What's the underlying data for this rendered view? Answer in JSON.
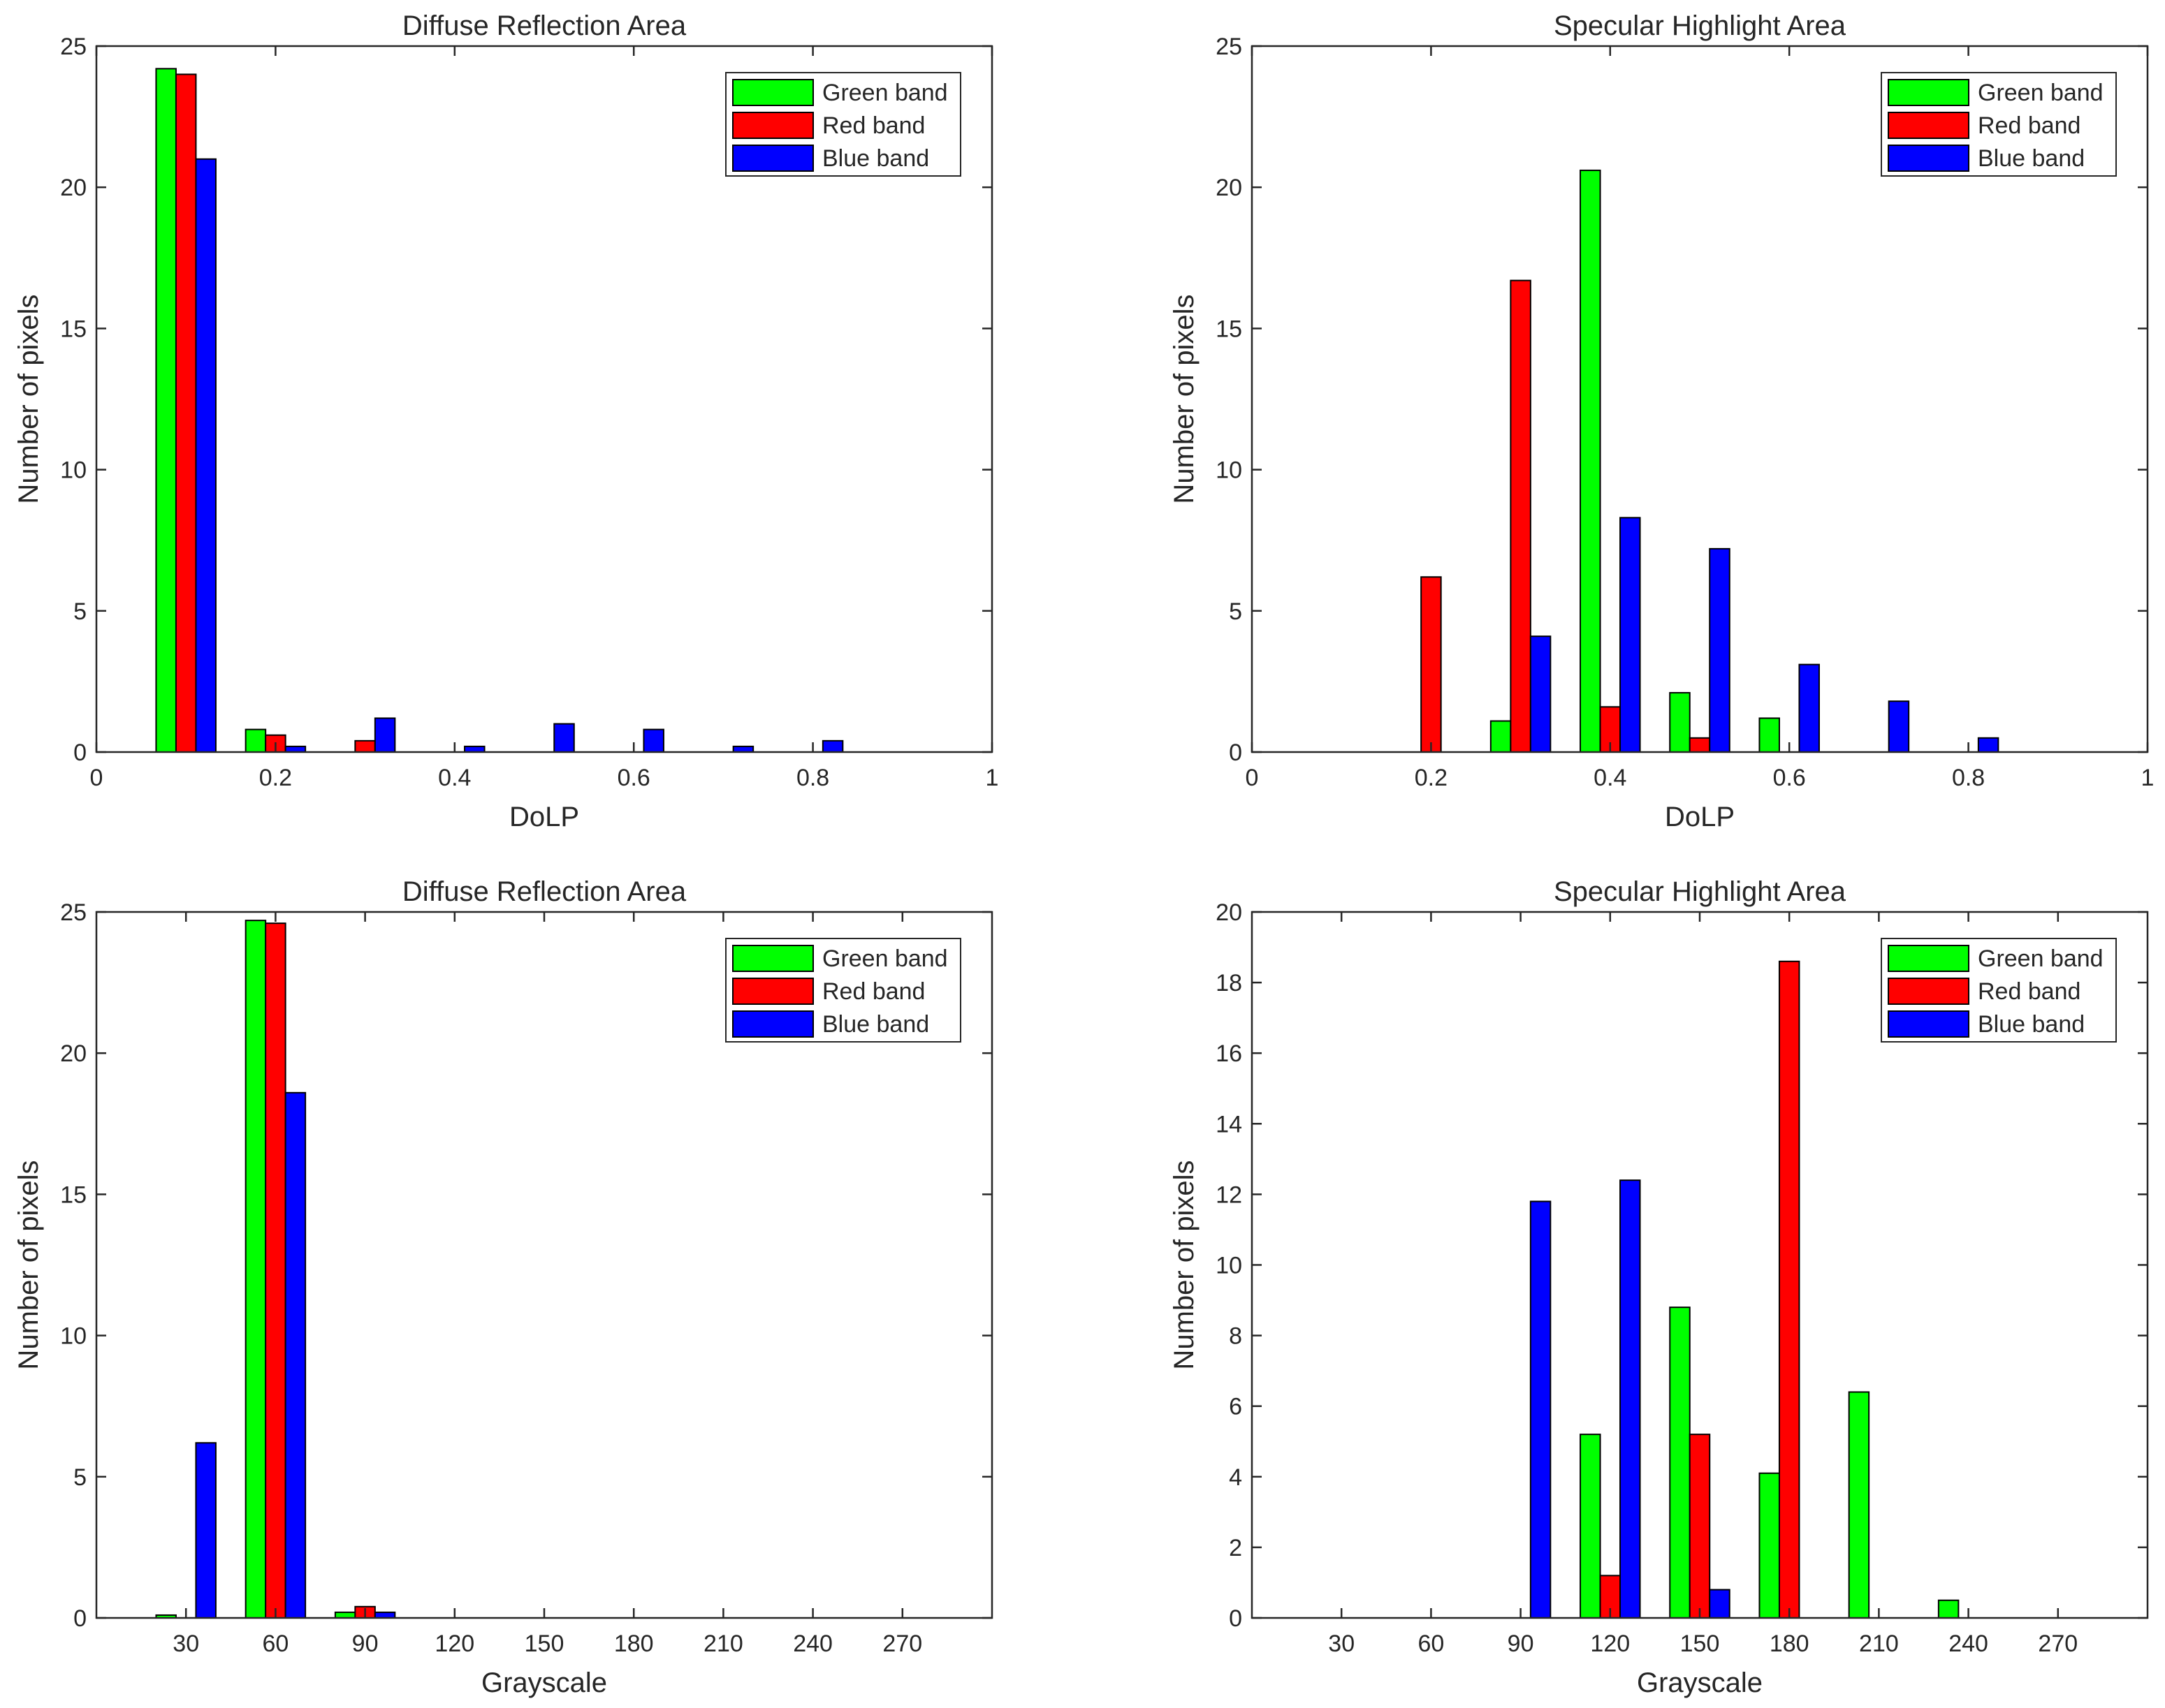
{
  "chart_data": [
    {
      "type": "bar",
      "title": "Diffuse Reflection Area",
      "xlabel": "DoLP",
      "ylabel": "Number of pixels",
      "xlim": [
        0,
        1
      ],
      "ylim": [
        0,
        25
      ],
      "xticks": [
        0,
        0.2,
        0.4,
        0.6,
        0.8,
        1
      ],
      "xtick_labels": [
        "0",
        "0.2",
        "0.4",
        "0.6",
        "0.8",
        "1"
      ],
      "yticks": [
        0,
        5,
        10,
        15,
        20,
        25
      ],
      "ytick_labels": [
        "0",
        "5",
        "10",
        "15",
        "20",
        "25"
      ],
      "categories": [
        0.1,
        0.2,
        0.3,
        0.4,
        0.5,
        0.6,
        0.7,
        0.8
      ],
      "bar_group_width": 0.0667,
      "series": [
        {
          "name": "Green band",
          "color": "#00ff00",
          "values": [
            24.2,
            0.8,
            0,
            0,
            0,
            0,
            0,
            0
          ]
        },
        {
          "name": "Red band",
          "color": "#ff0000",
          "values": [
            24.0,
            0.6,
            0.4,
            0,
            0,
            0,
            0,
            0
          ]
        },
        {
          "name": "Blue band",
          "color": "#0000ff",
          "values": [
            21.0,
            0.2,
            1.2,
            0.2,
            1.0,
            0.8,
            0.2,
            0.4
          ]
        }
      ],
      "legend_position": "top-right",
      "grid": false
    },
    {
      "type": "bar",
      "title": "Specular Highlight Area",
      "xlabel": "DoLP",
      "ylabel": "Number of pixels",
      "xlim": [
        0,
        1
      ],
      "ylim": [
        0,
        25
      ],
      "xticks": [
        0,
        0.2,
        0.4,
        0.6,
        0.8,
        1
      ],
      "xtick_labels": [
        "0",
        "0.2",
        "0.4",
        "0.6",
        "0.8",
        "1"
      ],
      "yticks": [
        0,
        5,
        10,
        15,
        20,
        25
      ],
      "ytick_labels": [
        "0",
        "5",
        "10",
        "15",
        "20",
        "25"
      ],
      "categories": [
        0.2,
        0.3,
        0.4,
        0.5,
        0.6,
        0.7,
        0.8
      ],
      "bar_group_width": 0.0667,
      "series": [
        {
          "name": "Green band",
          "color": "#00ff00",
          "values": [
            0,
            1.1,
            20.6,
            2.1,
            1.2,
            0,
            0
          ]
        },
        {
          "name": "Red band",
          "color": "#ff0000",
          "values": [
            6.2,
            16.7,
            1.6,
            0.5,
            0,
            0,
            0
          ]
        },
        {
          "name": "Blue band",
          "color": "#0000ff",
          "values": [
            0,
            4.1,
            8.3,
            7.2,
            3.1,
            1.8,
            0.5
          ]
        }
      ],
      "legend_position": "top-right",
      "grid": false
    },
    {
      "type": "bar",
      "title": "Diffuse Reflection Area",
      "xlabel": "Grayscale",
      "ylabel": "Number of pixels",
      "xlim": [
        0,
        300
      ],
      "ylim": [
        0,
        25
      ],
      "xticks": [
        30,
        60,
        90,
        120,
        150,
        180,
        210,
        240,
        270
      ],
      "xtick_labels": [
        "30",
        "60",
        "90",
        "120",
        "150",
        "180",
        "210",
        "240",
        "270"
      ],
      "yticks": [
        0,
        5,
        10,
        15,
        20,
        25
      ],
      "ytick_labels": [
        "0",
        "5",
        "10",
        "15",
        "20",
        "25"
      ],
      "categories": [
        30,
        60,
        90
      ],
      "bar_group_width": 20,
      "series": [
        {
          "name": "Green band",
          "color": "#00ff00",
          "values": [
            0.1,
            24.7,
            0.2
          ]
        },
        {
          "name": "Red band",
          "color": "#ff0000",
          "values": [
            0,
            24.6,
            0.4
          ]
        },
        {
          "name": "Blue band",
          "color": "#0000ff",
          "values": [
            6.2,
            18.6,
            0.2
          ]
        }
      ],
      "legend_position": "top-right",
      "grid": false
    },
    {
      "type": "bar",
      "title": "Specular Highlight Area",
      "xlabel": "Grayscale",
      "ylabel": "Number of pixels",
      "xlim": [
        0,
        300
      ],
      "ylim": [
        0,
        20
      ],
      "xticks": [
        30,
        60,
        90,
        120,
        150,
        180,
        210,
        240,
        270
      ],
      "xtick_labels": [
        "30",
        "60",
        "90",
        "120",
        "150",
        "180",
        "210",
        "240",
        "270"
      ],
      "yticks": [
        0,
        2,
        4,
        6,
        8,
        10,
        12,
        14,
        16,
        18,
        20
      ],
      "ytick_labels": [
        "0",
        "2",
        "4",
        "6",
        "8",
        "10",
        "12",
        "14",
        "16",
        "18",
        "20"
      ],
      "categories": [
        90,
        120,
        150,
        180,
        210,
        240
      ],
      "bar_group_width": 20,
      "series": [
        {
          "name": "Green band",
          "color": "#00ff00",
          "values": [
            0,
            5.2,
            8.8,
            4.1,
            6.4,
            0.5
          ]
        },
        {
          "name": "Red band",
          "color": "#ff0000",
          "values": [
            0,
            1.2,
            5.2,
            18.6,
            0,
            0
          ]
        },
        {
          "name": "Blue band",
          "color": "#0000ff",
          "values": [
            11.8,
            12.4,
            0.8,
            0,
            0,
            0
          ]
        }
      ],
      "legend_position": "top-right",
      "grid": false
    }
  ]
}
